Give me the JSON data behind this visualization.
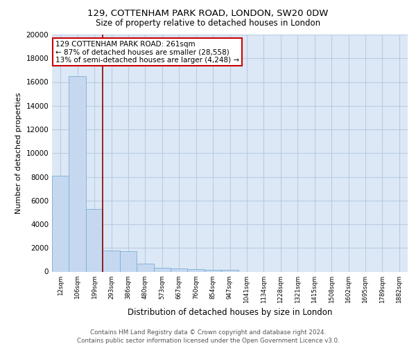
{
  "title1": "129, COTTENHAM PARK ROAD, LONDON, SW20 0DW",
  "title2": "Size of property relative to detached houses in London",
  "xlabel": "Distribution of detached houses by size in London",
  "ylabel": "Number of detached properties",
  "bar_labels": [
    "12sqm",
    "106sqm",
    "199sqm",
    "293sqm",
    "386sqm",
    "480sqm",
    "573sqm",
    "667sqm",
    "760sqm",
    "854sqm",
    "947sqm",
    "1041sqm",
    "1134sqm",
    "1228sqm",
    "1321sqm",
    "1415sqm",
    "1508sqm",
    "1602sqm",
    "1695sqm",
    "1789sqm",
    "1882sqm"
  ],
  "bar_values": [
    8100,
    16500,
    5300,
    1800,
    1750,
    700,
    300,
    250,
    200,
    150,
    150,
    0,
    0,
    0,
    0,
    0,
    0,
    0,
    0,
    0,
    0
  ],
  "bar_color": "#c5d8f0",
  "bar_edge_color": "#7aaed6",
  "bar_width": 1.0,
  "vline_x": 2.5,
  "vline_color": "#8b0000",
  "annotation_text": "129 COTTENHAM PARK ROAD: 261sqm\n← 87% of detached houses are smaller (28,558)\n13% of semi-detached houses are larger (4,248) →",
  "annotation_box_color": "#cc0000",
  "ylim": [
    0,
    20000
  ],
  "yticks": [
    0,
    2000,
    4000,
    6000,
    8000,
    10000,
    12000,
    14000,
    16000,
    18000,
    20000
  ],
  "bg_color": "#dce8f5",
  "grid_color": "#b8cce4",
  "fig_bg_color": "#ffffff",
  "footer1": "Contains HM Land Registry data © Crown copyright and database right 2024.",
  "footer2": "Contains public sector information licensed under the Open Government Licence v3.0."
}
